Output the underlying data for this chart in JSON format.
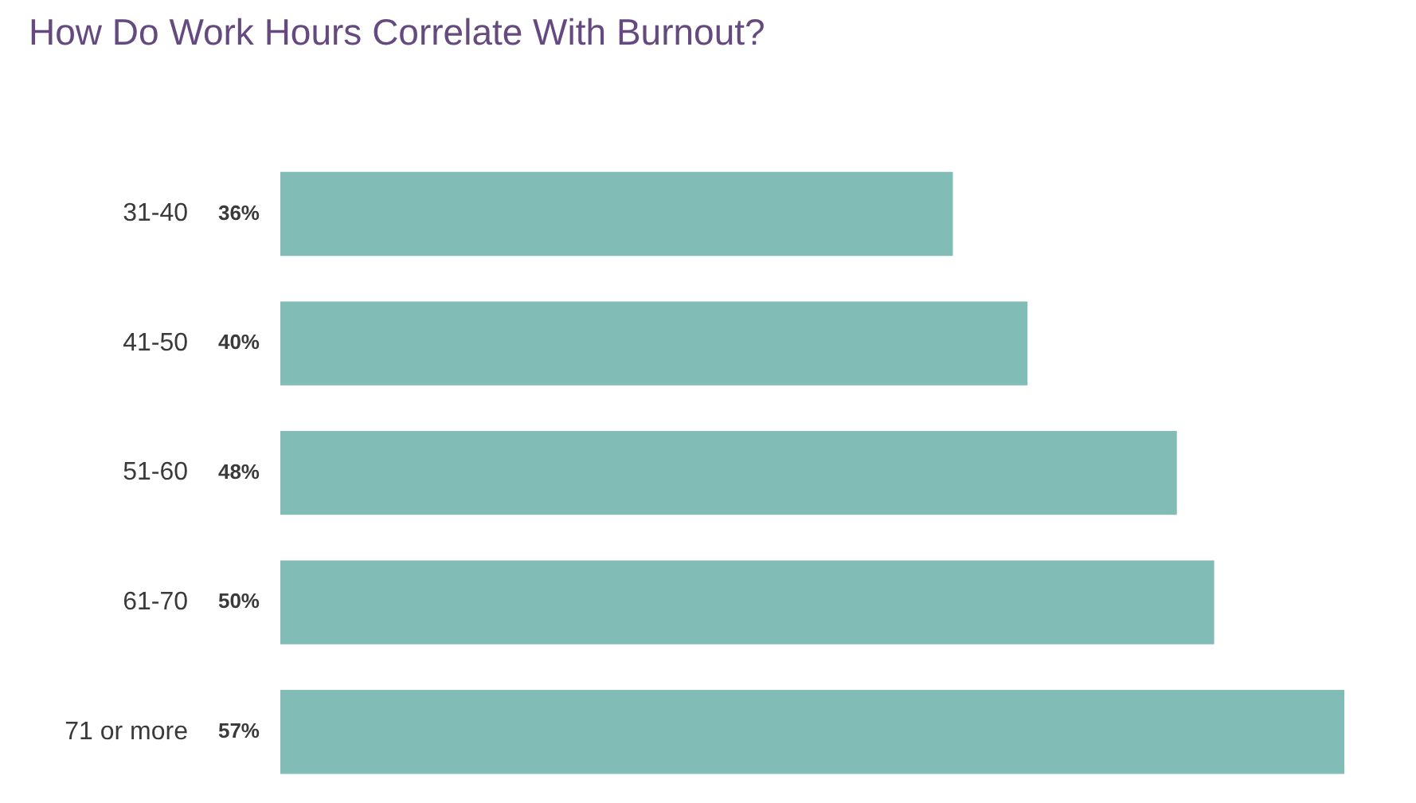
{
  "chart_data": {
    "type": "bar",
    "orientation": "horizontal",
    "title": "How Do Work Hours Correlate With Burnout?",
    "categories": [
      "31-40",
      "41-50",
      "51-60",
      "61-70",
      "71 or more"
    ],
    "values": [
      36,
      40,
      48,
      50,
      57
    ],
    "value_labels": [
      "36%",
      "40%",
      "48%",
      "50%",
      "57%"
    ],
    "color": "#82bcb7"
  }
}
